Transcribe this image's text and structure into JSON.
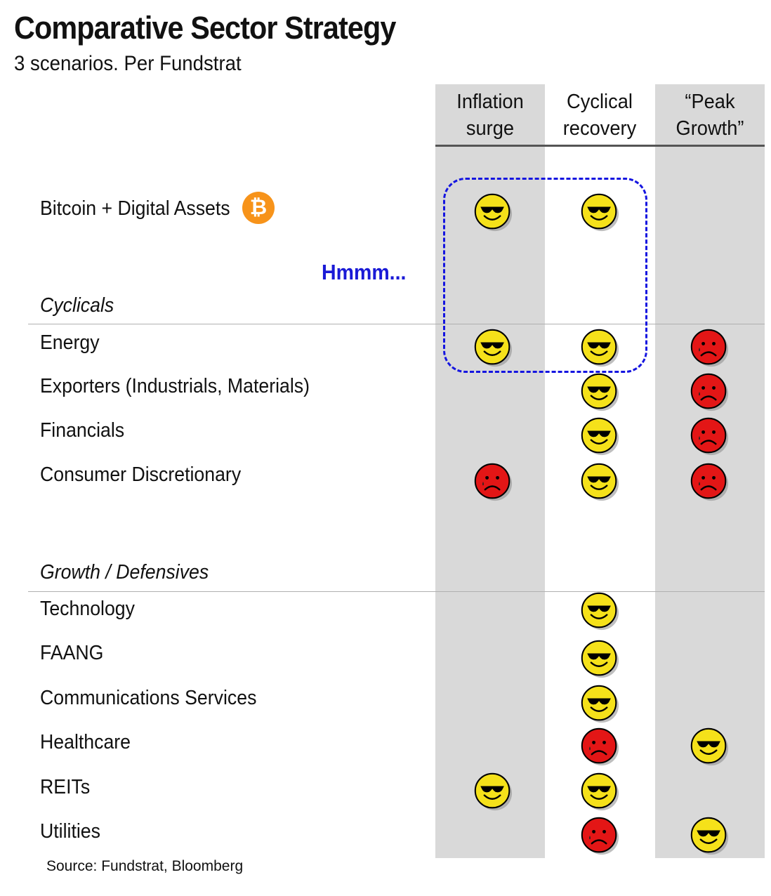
{
  "title": "Comparative Sector Strategy",
  "subtitle": "3 scenarios.  Per Fundstrat",
  "annotation": "Hmmm...",
  "bitcoin_icon": "bitcoin-icon",
  "source": "Source: Fundstrat,  Bloomberg",
  "colors": {
    "happy": "#f5e11a",
    "sad": "#e31616",
    "column_bg": "#d9d9d9",
    "highlight_box": "#1515e0",
    "bitcoin": "#f7931a"
  },
  "chart_data": {
    "type": "table",
    "columns": [
      "Inflation\nsurge",
      "Cyclical\nrecovery",
      "“Peak\nGrowth”"
    ],
    "legend": {
      "positive": "happy-sunglasses-face-icon",
      "negative": "sad-face-icon"
    },
    "sections": [
      "Cyclicals",
      "Growth / Defensives"
    ],
    "rows": [
      {
        "label": "Bitcoin + Digital Assets",
        "section": "",
        "ratings": [
          "positive",
          "positive",
          ""
        ]
      },
      {
        "label": "Energy",
        "section": "Cyclicals",
        "ratings": [
          "positive",
          "positive",
          "negative"
        ]
      },
      {
        "label": "Exporters (Industrials, Materials)",
        "section": "Cyclicals",
        "ratings": [
          "",
          "positive",
          "negative"
        ]
      },
      {
        "label": "Financials",
        "section": "Cyclicals",
        "ratings": [
          "",
          "positive",
          "negative"
        ]
      },
      {
        "label": "Consumer Discretionary",
        "section": "Cyclicals",
        "ratings": [
          "negative",
          "positive",
          "negative"
        ]
      },
      {
        "label": "Technology",
        "section": "Growth / Defensives",
        "ratings": [
          "",
          "positive",
          ""
        ]
      },
      {
        "label": "FAANG",
        "section": "Growth / Defensives",
        "ratings": [
          "",
          "positive",
          ""
        ]
      },
      {
        "label": "Communications Services",
        "section": "Growth / Defensives",
        "ratings": [
          "",
          "positive",
          ""
        ]
      },
      {
        "label": "Healthcare",
        "section": "Growth / Defensives",
        "ratings": [
          "",
          "negative",
          "positive"
        ]
      },
      {
        "label": "REITs",
        "section": "Growth / Defensives",
        "ratings": [
          "positive",
          "positive",
          ""
        ]
      },
      {
        "label": "Utilities",
        "section": "Growth / Defensives",
        "ratings": [
          "",
          "negative",
          "positive"
        ]
      }
    ]
  }
}
